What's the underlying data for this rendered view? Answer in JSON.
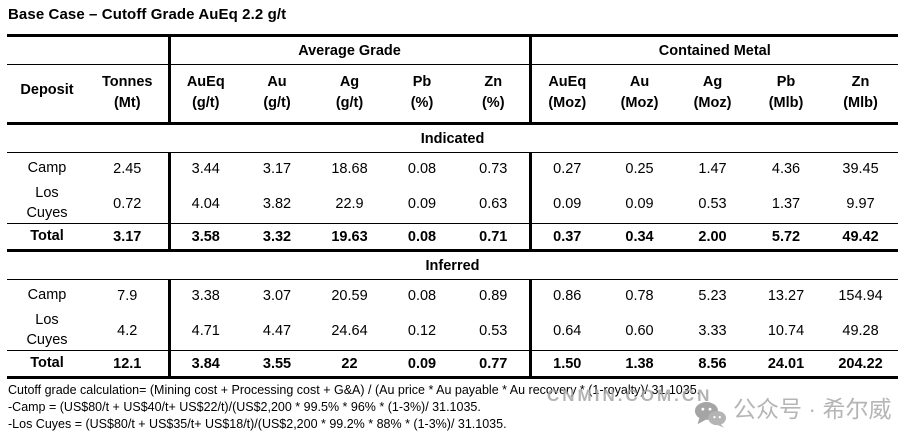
{
  "title": "Base Case – Cutoff Grade AuEq 2.2 g/t",
  "table": {
    "group_headers": {
      "average_grade": "Average Grade",
      "contained_metal": "Contained Metal"
    },
    "columns": [
      {
        "label": "Deposit",
        "unit": ""
      },
      {
        "label": "Tonnes",
        "unit": "(Mt)"
      },
      {
        "label": "AuEq",
        "unit": "(g/t)"
      },
      {
        "label": "Au",
        "unit": "(g/t)"
      },
      {
        "label": "Ag",
        "unit": "(g/t)"
      },
      {
        "label": "Pb",
        "unit": "(%)"
      },
      {
        "label": "Zn",
        "unit": "(%)"
      },
      {
        "label": "AuEq",
        "unit": "(Moz)"
      },
      {
        "label": "Au",
        "unit": "(Moz)"
      },
      {
        "label": "Ag",
        "unit": "(Moz)"
      },
      {
        "label": "Pb",
        "unit": "(Mlb)"
      },
      {
        "label": "Zn",
        "unit": "(Mlb)"
      }
    ],
    "sections": [
      {
        "name": "Indicated",
        "rows": [
          {
            "deposit": "Camp",
            "total": false,
            "values": [
              "2.45",
              "3.44",
              "3.17",
              "18.68",
              "0.08",
              "0.73",
              "0.27",
              "0.25",
              "1.47",
              "4.36",
              "39.45"
            ]
          },
          {
            "deposit": "Los Cuyes",
            "total": false,
            "values": [
              "0.72",
              "4.04",
              "3.82",
              "22.9",
              "0.09",
              "0.63",
              "0.09",
              "0.09",
              "0.53",
              "1.37",
              "9.97"
            ]
          },
          {
            "deposit": "Total",
            "total": true,
            "values": [
              "3.17",
              "3.58",
              "3.32",
              "19.63",
              "0.08",
              "0.71",
              "0.37",
              "0.34",
              "2.00",
              "5.72",
              "49.42"
            ]
          }
        ]
      },
      {
        "name": "Inferred",
        "rows": [
          {
            "deposit": "Camp",
            "total": false,
            "values": [
              "7.9",
              "3.38",
              "3.07",
              "20.59",
              "0.08",
              "0.89",
              "0.86",
              "0.78",
              "5.23",
              "13.27",
              "154.94"
            ]
          },
          {
            "deposit": "Los Cuyes",
            "total": false,
            "values": [
              "4.2",
              "4.71",
              "4.47",
              "24.64",
              "0.12",
              "0.53",
              "0.64",
              "0.60",
              "3.33",
              "10.74",
              "49.28"
            ]
          },
          {
            "deposit": "Total",
            "total": true,
            "values": [
              "12.1",
              "3.84",
              "3.55",
              "22",
              "0.09",
              "0.77",
              "1.50",
              "1.38",
              "8.56",
              "24.01",
              "204.22"
            ]
          }
        ]
      }
    ]
  },
  "footnotes": [
    "Cutoff grade calculation= (Mining cost + Processing cost + G&A) / (Au price * Au payable * Au recovery * (1-royalty)/ 31.1035.",
    "-Camp = (US$80/t + US$40/t+ US$22/t)/(US$2,200 * 99.5% * 96% * (1-3%)/ 31.1035.",
    "-Los Cuyes = (US$80/t + US$35/t+ US$18/t)/(US$2,200 * 99.2% * 88% * (1-3%)/ 31.1035."
  ],
  "watermark": {
    "site": "CNMIN.COM.CN",
    "account": "公众号 · 希尔威",
    "icon": "wechat-icon"
  },
  "colors": {
    "text": "#000000",
    "border": "#000000",
    "watermark": "#b0b0b0",
    "background": "#ffffff"
  }
}
